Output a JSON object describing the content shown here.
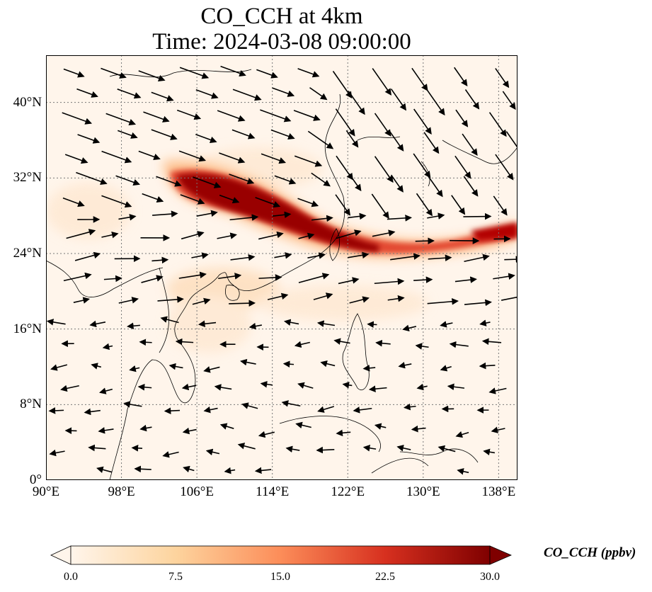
{
  "title": {
    "line1": "CO_CCH at 4km",
    "line2": "Time: 2024-03-08 09:00:00"
  },
  "map": {
    "lon_range": [
      90,
      140
    ],
    "lat_range": [
      0,
      45
    ],
    "lon_ticks": [
      "90°E",
      "98°E",
      "106°E",
      "114°E",
      "122°E",
      "130°E",
      "138°E"
    ],
    "lon_tick_values": [
      90,
      98,
      106,
      114,
      122,
      130,
      138
    ],
    "lat_ticks": [
      "0°",
      "8°N",
      "16°N",
      "24°N",
      "32°N",
      "40°N"
    ],
    "lat_tick_values": [
      0,
      8,
      16,
      24,
      32,
      40
    ],
    "gridlines": true,
    "plume_color_high": "#7f0000",
    "plume_color_mid": "#d7301f",
    "background_color": "#fff5eb"
  },
  "colorbar": {
    "label": "CO_CCH (ppbv)",
    "ticks": [
      "0.0",
      "7.5",
      "15.0",
      "22.5",
      "30.0"
    ],
    "range": [
      0,
      30
    ],
    "colors": [
      "#fff5eb",
      "#fdd49e",
      "#fc8d59",
      "#d7301f",
      "#7f0000"
    ]
  }
}
